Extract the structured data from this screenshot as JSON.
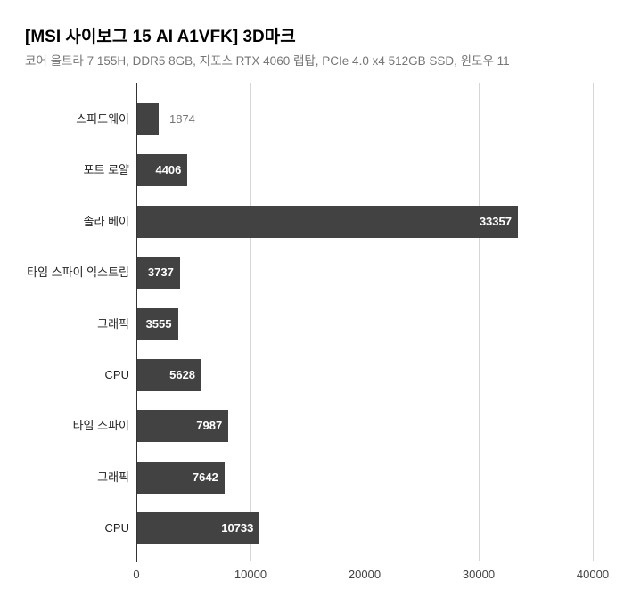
{
  "chart_data": {
    "type": "bar",
    "orientation": "horizontal",
    "title": "[MSI 사이보그 15 AI A1VFK] 3D마크",
    "subtitle": "코어 울트라 7 155H, DDR5 8GB, 지포스 RTX 4060 랩탑, PCIe 4.0 x4 512GB SSD, 윈도우 11",
    "categories": [
      "스피드웨이",
      "포트 로얄",
      "솔라 베이",
      "타임 스파이 익스트림",
      "그래픽",
      "CPU",
      "타임 스파이",
      "그래픽",
      "CPU"
    ],
    "values": [
      1874,
      4406,
      33357,
      3737,
      3555,
      5628,
      7987,
      7642,
      10733
    ],
    "value_labels": [
      "1874",
      "4406",
      "33357",
      "3737",
      "3555",
      "5628",
      "7987",
      "7642",
      "10733"
    ],
    "xlabel": "",
    "ylabel": "",
    "xlim": [
      0,
      40000
    ],
    "x_ticks": [
      0,
      10000,
      20000,
      30000,
      40000
    ],
    "x_tick_labels": [
      "0",
      "10000",
      "20000",
      "30000",
      "40000"
    ],
    "grid": true,
    "legend": "none",
    "colors": {
      "bar": "#424242",
      "value_label_inside": "#ffffff",
      "value_label_outside": "#757575",
      "category_label": "#222222",
      "tick_label": "#444444",
      "gridline": "#d6d6d6",
      "axis_line": "#333333",
      "title": "#000000",
      "subtitle": "#757575",
      "background": "#ffffff"
    }
  }
}
